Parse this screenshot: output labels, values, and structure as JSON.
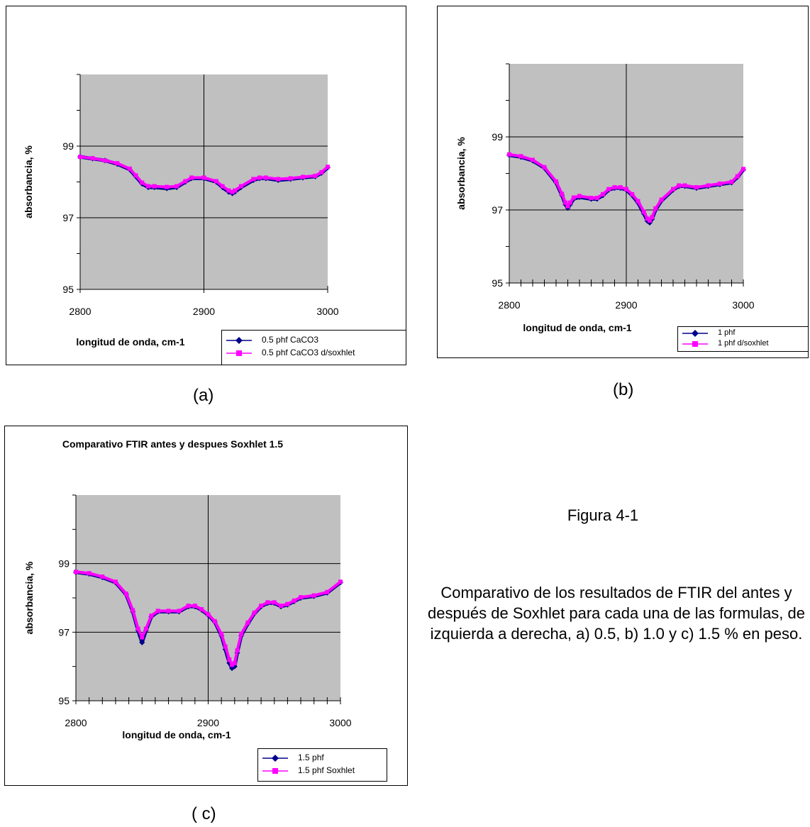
{
  "chart_data": [
    {
      "id": "a",
      "type": "line",
      "title": "",
      "xlabel": "longitud de onda, cm-1",
      "ylabel": "absorbancia, %",
      "xlim": [
        2800,
        3000
      ],
      "ylim": [
        95,
        101
      ],
      "xticks": [
        "2800",
        "2900",
        "3000"
      ],
      "yticks": [
        "95",
        "97",
        "99"
      ],
      "grid": true,
      "legend": "bottom-right",
      "x": [
        2800,
        2810,
        2820,
        2830,
        2840,
        2845,
        2850,
        2855,
        2860,
        2870,
        2878,
        2885,
        2890,
        2900,
        2910,
        2915,
        2920,
        2923,
        2925,
        2930,
        2940,
        2945,
        2950,
        2960,
        2970,
        2980,
        2990,
        2995,
        3000
      ],
      "series": [
        {
          "name": "0.5 phf CaCO3",
          "color": "#00008b",
          "marker": "diamond",
          "values": [
            98.7,
            98.65,
            98.6,
            98.5,
            98.35,
            98.15,
            97.95,
            97.85,
            97.85,
            97.82,
            97.85,
            98.0,
            98.1,
            98.1,
            98.0,
            97.85,
            97.72,
            97.68,
            97.72,
            97.85,
            98.05,
            98.1,
            98.1,
            98.05,
            98.08,
            98.12,
            98.15,
            98.25,
            98.4
          ]
        },
        {
          "name": "0.5 phf CaCO3 d/soxhlet",
          "color": "#ff00ff",
          "marker": "square",
          "values": [
            98.7,
            98.66,
            98.6,
            98.52,
            98.37,
            98.18,
            97.98,
            97.88,
            97.88,
            97.86,
            97.88,
            98.02,
            98.12,
            98.12,
            98.02,
            97.88,
            97.76,
            97.72,
            97.76,
            97.88,
            98.08,
            98.12,
            98.12,
            98.08,
            98.1,
            98.14,
            98.17,
            98.27,
            98.42
          ]
        }
      ]
    },
    {
      "id": "b",
      "type": "line",
      "title": "",
      "xlabel": "longitud de onda, cm-1",
      "ylabel": "absorbancia, %",
      "xlim": [
        2800,
        3000
      ],
      "ylim": [
        95,
        101
      ],
      "xticks": [
        "2800",
        "2900",
        "3000"
      ],
      "yticks": [
        "95",
        "97",
        "99"
      ],
      "grid": true,
      "legend": "bottom-right",
      "x": [
        2800,
        2810,
        2820,
        2830,
        2840,
        2845,
        2848,
        2850,
        2852,
        2855,
        2860,
        2870,
        2875,
        2880,
        2885,
        2890,
        2895,
        2900,
        2905,
        2910,
        2915,
        2918,
        2920,
        2922,
        2925,
        2930,
        2940,
        2945,
        2950,
        2960,
        2970,
        2980,
        2990,
        2995,
        3000
      ],
      "series": [
        {
          "name": "1 phf",
          "color": "#00008b",
          "marker": "diamond",
          "values": [
            98.5,
            98.45,
            98.35,
            98.15,
            97.75,
            97.4,
            97.15,
            97.05,
            97.15,
            97.3,
            97.35,
            97.3,
            97.3,
            97.4,
            97.55,
            97.6,
            97.6,
            97.55,
            97.4,
            97.2,
            96.9,
            96.7,
            96.65,
            96.75,
            97.0,
            97.25,
            97.55,
            97.65,
            97.65,
            97.6,
            97.65,
            97.7,
            97.75,
            97.9,
            98.1
          ]
        },
        {
          "name": "1 phf d/soxhlet",
          "color": "#ff00ff",
          "marker": "square",
          "values": [
            98.52,
            98.47,
            98.37,
            98.17,
            97.78,
            97.44,
            97.2,
            97.1,
            97.2,
            97.34,
            97.38,
            97.33,
            97.33,
            97.43,
            97.57,
            97.62,
            97.62,
            97.57,
            97.43,
            97.24,
            96.95,
            96.76,
            96.71,
            96.8,
            97.04,
            97.28,
            97.57,
            97.67,
            97.67,
            97.62,
            97.67,
            97.72,
            97.77,
            97.92,
            98.12
          ]
        }
      ]
    },
    {
      "id": "c",
      "type": "line",
      "title": "Comparativo FTIR antes y despues Soxhlet 1.5",
      "xlabel": "longitud de onda, cm-1",
      "ylabel": "absorbancia, %",
      "xlim": [
        2800,
        3000
      ],
      "ylim": [
        95,
        101
      ],
      "xticks": [
        "2800",
        "2900",
        "3000"
      ],
      "yticks": [
        "95",
        "97",
        "99"
      ],
      "grid": true,
      "legend": "bottom-right",
      "x": [
        2800,
        2810,
        2820,
        2830,
        2838,
        2843,
        2847,
        2850,
        2853,
        2857,
        2862,
        2870,
        2878,
        2885,
        2890,
        2895,
        2900,
        2905,
        2910,
        2913,
        2916,
        2918,
        2920,
        2922,
        2925,
        2930,
        2935,
        2940,
        2945,
        2950,
        2955,
        2960,
        2965,
        2970,
        2980,
        2990,
        3000
      ],
      "series": [
        {
          "name": "1.5 phf",
          "color": "#00008b",
          "marker": "diamond",
          "values": [
            98.75,
            98.7,
            98.6,
            98.45,
            98.1,
            97.6,
            97.05,
            96.7,
            97.05,
            97.45,
            97.6,
            97.6,
            97.6,
            97.75,
            97.75,
            97.65,
            97.5,
            97.3,
            96.9,
            96.5,
            96.1,
            95.95,
            96.0,
            96.4,
            96.9,
            97.25,
            97.55,
            97.75,
            97.85,
            97.85,
            97.75,
            97.8,
            97.9,
            98.0,
            98.05,
            98.15,
            98.45
          ]
        },
        {
          "name": "1.5 phf Soxhlet",
          "color": "#ff00ff",
          "marker": "square",
          "values": [
            98.76,
            98.72,
            98.62,
            98.47,
            98.12,
            97.64,
            97.1,
            96.85,
            97.1,
            97.48,
            97.62,
            97.62,
            97.62,
            97.77,
            97.77,
            97.67,
            97.52,
            97.32,
            96.95,
            96.58,
            96.2,
            96.05,
            96.1,
            96.47,
            96.95,
            97.28,
            97.57,
            97.77,
            97.87,
            97.87,
            97.77,
            97.82,
            97.92,
            98.02,
            98.07,
            98.17,
            98.47
          ]
        }
      ]
    }
  ],
  "labels": {
    "a": "(a)",
    "b": "(b)",
    "c": "( c)"
  },
  "caption": {
    "title": "Figura 4-1",
    "body": "Comparativo de los resultados de FTIR del antes y después de Soxhlet para cada una de las formulas, de izquierda a derecha, a) 0.5, b) 1.0 y c) 1.5 % en peso."
  }
}
